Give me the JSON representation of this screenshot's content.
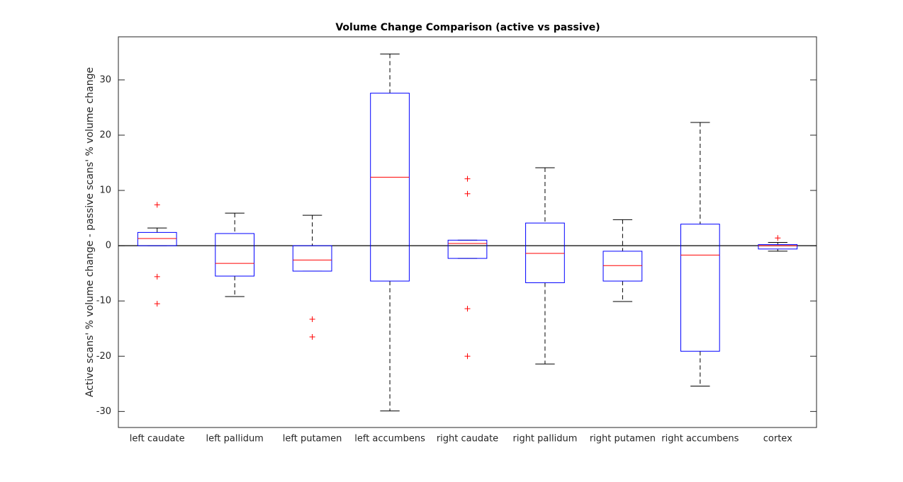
{
  "chart_data": {
    "type": "box",
    "title": "Volume Change Comparison (active vs passive)",
    "y_label": "Active scans' % volume change - passive scans' % volume change",
    "categories": [
      "left caudate",
      "left pallidum",
      "left putamen",
      "left accumbens",
      "right caudate",
      "right pallidum",
      "right putamen",
      "right accumbens",
      "cortex"
    ],
    "boxes": [
      {
        "whisker_low": 0,
        "q1": 0,
        "median": 1.3,
        "q3": 2.4,
        "whisker_high": 3.2,
        "outliers": [
          7.4,
          -5.6,
          -10.5
        ]
      },
      {
        "whisker_low": -9.2,
        "q1": -5.5,
        "median": -3.2,
        "q3": 2.2,
        "whisker_high": 5.9,
        "outliers": []
      },
      {
        "whisker_low": -4.6,
        "q1": -4.6,
        "median": -2.6,
        "q3": 0,
        "whisker_high": 5.5,
        "outliers": [
          -13.3,
          -16.5
        ]
      },
      {
        "whisker_low": -29.9,
        "q1": -6.4,
        "median": 12.4,
        "q3": 27.6,
        "whisker_high": 34.7,
        "outliers": []
      },
      {
        "whisker_low": -2.3,
        "q1": -2.3,
        "median": 0.4,
        "q3": 1.0,
        "whisker_high": 1.0,
        "outliers": [
          12.1,
          9.4,
          -11.4,
          -20.0
        ]
      },
      {
        "whisker_low": -21.4,
        "q1": -6.7,
        "median": -1.4,
        "q3": 4.1,
        "whisker_high": 14.1,
        "outliers": []
      },
      {
        "whisker_low": -10.1,
        "q1": -6.4,
        "median": -3.6,
        "q3": -1.0,
        "whisker_high": 4.7,
        "outliers": []
      },
      {
        "whisker_low": -25.4,
        "q1": -19.1,
        "median": -1.7,
        "q3": 3.9,
        "whisker_high": 22.3,
        "outliers": []
      },
      {
        "whisker_low": -1.0,
        "q1": -0.6,
        "median": 0.0,
        "q3": 0.2,
        "whisker_high": 0.6,
        "outliers": [
          1.4
        ]
      }
    ],
    "reference_line": 0,
    "ylim": [
      -32.9,
      37.8
    ],
    "yticks": [
      -30,
      -20,
      -10,
      0,
      10,
      20,
      30
    ],
    "box_color": "#0000ff",
    "median_color": "#ff0000",
    "whisker_color": "#000000",
    "outlier_color": "#ff0000"
  }
}
